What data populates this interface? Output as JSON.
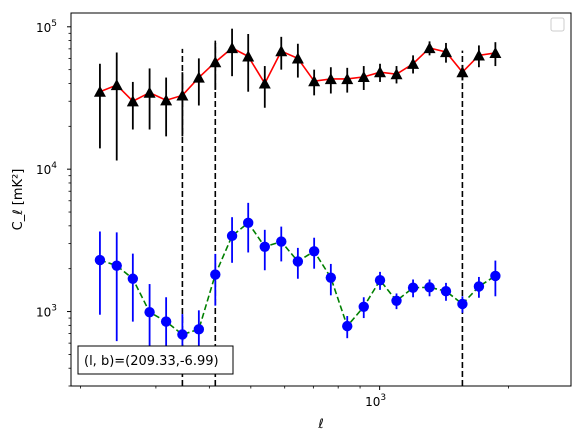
{
  "chart_data": {
    "type": "scatter",
    "title": "",
    "xlabel": "ℓ",
    "ylabel": "C_ℓ [mK²]",
    "xscale": "log",
    "yscale": "log",
    "xlim": [
      190,
      2800
    ],
    "ylim": [
      300,
      125000
    ],
    "x_tick_labels": [
      {
        "value": 1000,
        "base": "10",
        "exp": "3"
      }
    ],
    "y_tick_labels": [
      {
        "value": 1000,
        "base": "10",
        "exp": "3"
      },
      {
        "value": 10000,
        "base": "10",
        "exp": "4"
      },
      {
        "value": 100000,
        "base": "10",
        "exp": "5"
      }
    ],
    "grid": false,
    "legend": "upper right (empty)",
    "series": [
      {
        "marker": "triangle",
        "color": "#000000",
        "line_color": "#ff0000",
        "line_style": "solid",
        "points": [
          {
            "x": 222,
            "y": 35000,
            "lo": 14000,
            "hi": 55000
          },
          {
            "x": 243,
            "y": 39000,
            "lo": 11500,
            "hi": 66000
          },
          {
            "x": 265,
            "y": 30000,
            "lo": 19000,
            "hi": 41000
          },
          {
            "x": 290,
            "y": 34500,
            "lo": 19000,
            "hi": 51000
          },
          {
            "x": 317,
            "y": 30500,
            "lo": 17000,
            "hi": 44000
          },
          {
            "x": 346,
            "y": 33000,
            "lo": 17000,
            "hi": 48000
          },
          {
            "x": 378,
            "y": 44000,
            "lo": 28000,
            "hi": 60000
          },
          {
            "x": 413,
            "y": 56500,
            "lo": 36000,
            "hi": 77000
          },
          {
            "x": 452,
            "y": 71000,
            "lo": 45000,
            "hi": 97000
          },
          {
            "x": 493,
            "y": 62000,
            "lo": 35000,
            "hi": 89000
          },
          {
            "x": 539,
            "y": 40000,
            "lo": 27000,
            "hi": 53000
          },
          {
            "x": 589,
            "y": 67500,
            "lo": 50000,
            "hi": 85000
          },
          {
            "x": 644,
            "y": 60000,
            "lo": 44000,
            "hi": 76000
          },
          {
            "x": 703,
            "y": 41500,
            "lo": 33000,
            "hi": 50000
          },
          {
            "x": 769,
            "y": 43000,
            "lo": 34000,
            "hi": 52000
          },
          {
            "x": 840,
            "y": 43000,
            "lo": 34500,
            "hi": 51500
          },
          {
            "x": 918,
            "y": 44500,
            "lo": 36000,
            "hi": 53000
          },
          {
            "x": 1002,
            "y": 48000,
            "lo": 41000,
            "hi": 55000
          },
          {
            "x": 1095,
            "y": 46500,
            "lo": 40000,
            "hi": 53000
          },
          {
            "x": 1197,
            "y": 55000,
            "lo": 47000,
            "hi": 63000
          },
          {
            "x": 1308,
            "y": 71000,
            "lo": 63000,
            "hi": 79000
          },
          {
            "x": 1429,
            "y": 66500,
            "lo": 56000,
            "hi": 77000
          },
          {
            "x": 1561,
            "y": 48000,
            "lo": 42000,
            "hi": 54000
          },
          {
            "x": 1706,
            "y": 63000,
            "lo": 52000,
            "hi": 74000
          },
          {
            "x": 1864,
            "y": 65500,
            "lo": 53000,
            "hi": 78000
          }
        ]
      },
      {
        "marker": "circle",
        "color": "#0000ff",
        "line_color": "#008000",
        "line_style": "dashed",
        "points": [
          {
            "x": 222,
            "y": 2300,
            "lo": 950,
            "hi": 3650
          },
          {
            "x": 243,
            "y": 2100,
            "lo": 620,
            "hi": 3600
          },
          {
            "x": 265,
            "y": 1700,
            "lo": 850,
            "hi": 2550
          },
          {
            "x": 290,
            "y": 990,
            "lo": 420,
            "hi": 1560
          },
          {
            "x": 317,
            "y": 850,
            "lo": 440,
            "hi": 1260
          },
          {
            "x": 346,
            "y": 690,
            "lo": 420,
            "hi": 960
          },
          {
            "x": 378,
            "y": 750,
            "lo": 480,
            "hi": 1020
          },
          {
            "x": 413,
            "y": 1820,
            "lo": 1100,
            "hi": 2540
          },
          {
            "x": 452,
            "y": 3400,
            "lo": 2200,
            "hi": 4600
          },
          {
            "x": 493,
            "y": 4200,
            "lo": 2600,
            "hi": 5800
          },
          {
            "x": 539,
            "y": 2850,
            "lo": 1950,
            "hi": 3750
          },
          {
            "x": 589,
            "y": 3100,
            "lo": 2250,
            "hi": 3950
          },
          {
            "x": 644,
            "y": 2250,
            "lo": 1700,
            "hi": 2800
          },
          {
            "x": 703,
            "y": 2650,
            "lo": 2000,
            "hi": 3300
          },
          {
            "x": 769,
            "y": 1730,
            "lo": 1300,
            "hi": 2160
          },
          {
            "x": 840,
            "y": 790,
            "lo": 650,
            "hi": 930
          },
          {
            "x": 918,
            "y": 1080,
            "lo": 900,
            "hi": 1260
          },
          {
            "x": 1002,
            "y": 1660,
            "lo": 1420,
            "hi": 1900
          },
          {
            "x": 1095,
            "y": 1190,
            "lo": 1040,
            "hi": 1340
          },
          {
            "x": 1197,
            "y": 1470,
            "lo": 1260,
            "hi": 1680
          },
          {
            "x": 1308,
            "y": 1480,
            "lo": 1280,
            "hi": 1680
          },
          {
            "x": 1429,
            "y": 1390,
            "lo": 1190,
            "hi": 1590
          },
          {
            "x": 1561,
            "y": 1130,
            "lo": 980,
            "hi": 1280
          },
          {
            "x": 1706,
            "y": 1500,
            "lo": 1250,
            "hi": 1750
          },
          {
            "x": 1864,
            "y": 1780,
            "lo": 1280,
            "hi": 2280
          }
        ]
      }
    ],
    "vertical_lines": [
      {
        "x": 346,
        "y_from": 300,
        "y_to": 70000
      },
      {
        "x": 413,
        "y_from": 300,
        "y_to": 80000
      },
      {
        "x": 1561,
        "y_from": 300,
        "y_to": 68000
      }
    ],
    "annotation": "(l, b)=(209.33,-6.99)"
  }
}
